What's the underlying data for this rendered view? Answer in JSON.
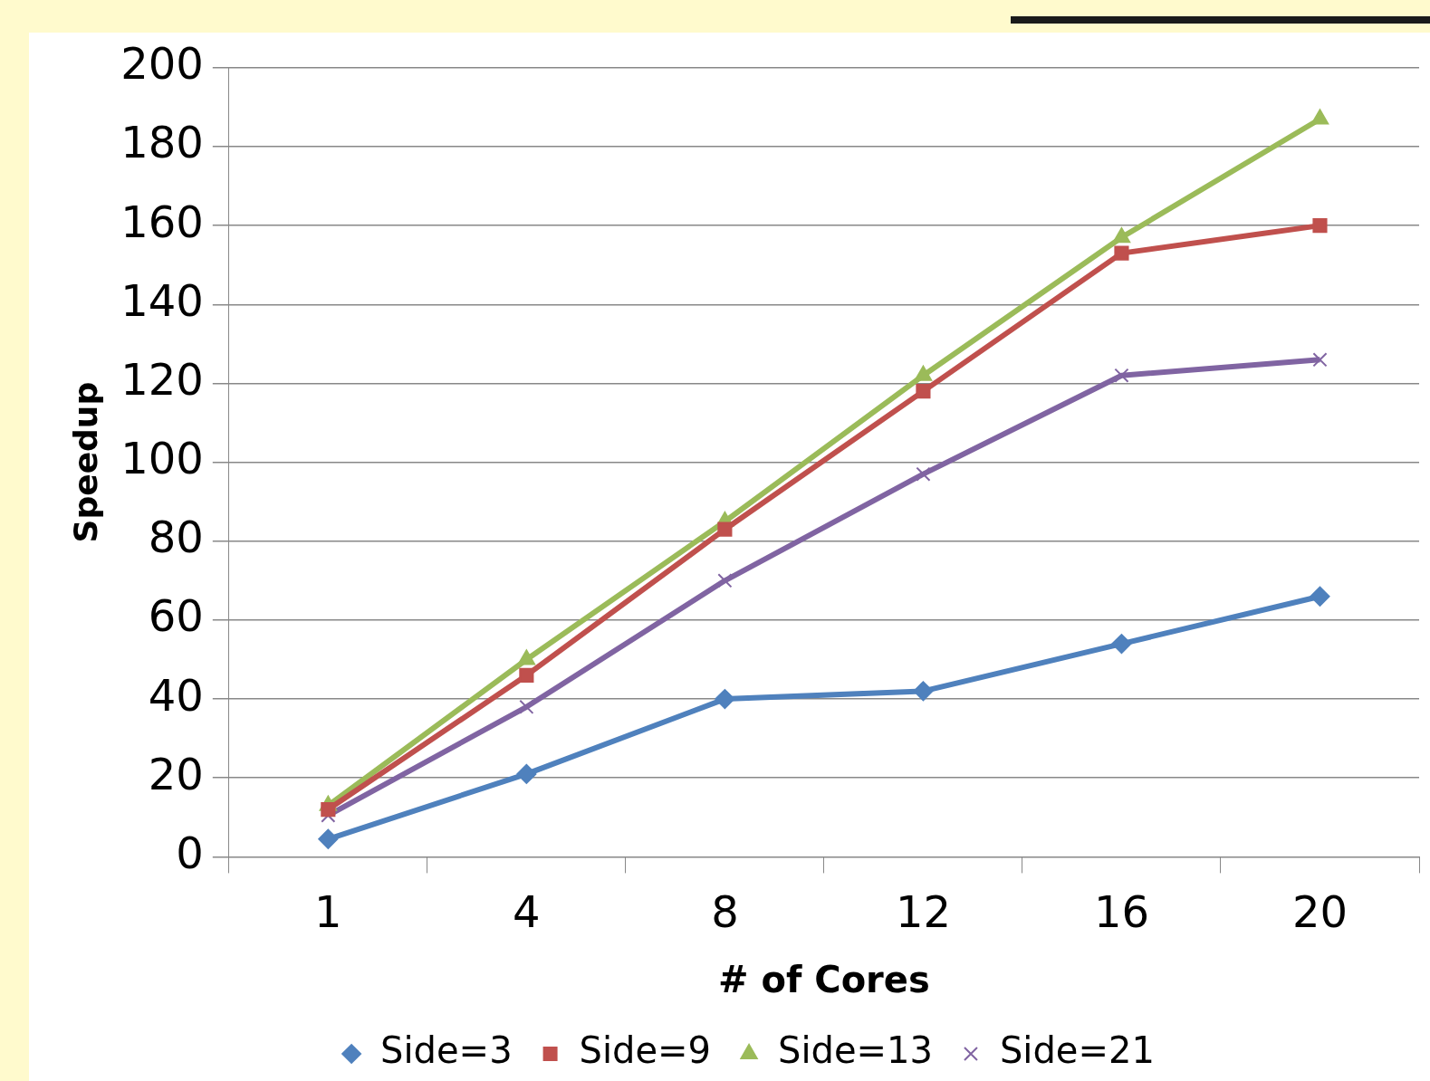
{
  "chart_data": {
    "type": "line",
    "xlabel": "# of Cores",
    "ylabel": "Speedup",
    "categories": [
      "1",
      "4",
      "8",
      "12",
      "16",
      "20"
    ],
    "series": [
      {
        "name": "Side=3",
        "color": "#4f81bd",
        "marker": "diamond",
        "values": [
          4.5,
          21,
          40,
          42,
          54,
          66
        ]
      },
      {
        "name": "Side=9",
        "color": "#c0504d",
        "marker": "square",
        "values": [
          12,
          46,
          83,
          118,
          153,
          160
        ]
      },
      {
        "name": "Side=13",
        "color": "#9bbb59",
        "marker": "triangle",
        "values": [
          13,
          50,
          85,
          122,
          157,
          187
        ]
      },
      {
        "name": "Side=21",
        "color": "#8064a2",
        "marker": "cross",
        "values": [
          10.5,
          38,
          70,
          97,
          122,
          126
        ]
      }
    ],
    "ylim": [
      0,
      200
    ],
    "yticks": [
      0,
      20,
      40,
      60,
      80,
      100,
      120,
      140,
      160,
      180,
      200
    ],
    "grid": "y",
    "legend": "bottom",
    "line_style": "solid"
  }
}
